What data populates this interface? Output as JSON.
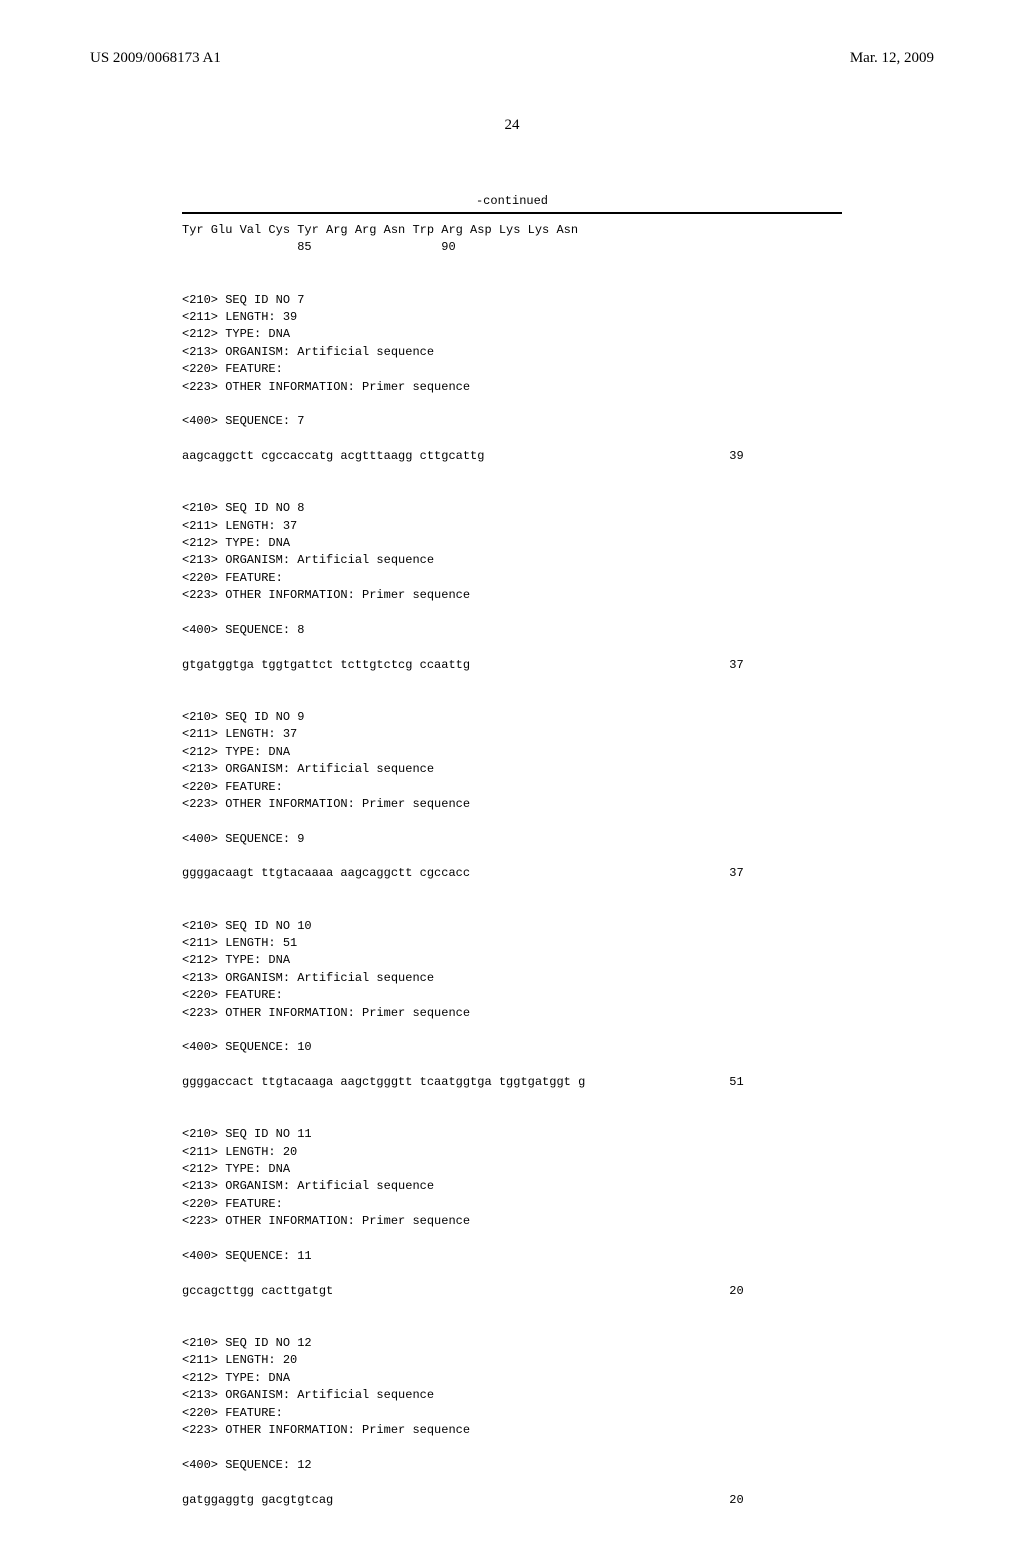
{
  "header": {
    "doc_number": "US 2009/0068173 A1",
    "doc_date": "Mar. 12, 2009"
  },
  "page_number": "24",
  "continued_label": "-continued",
  "peptide": {
    "line1": "Tyr Glu Val Cys Tyr Arg Arg Asn Trp Arg Asp Lys Lys Asn",
    "pos1": "85",
    "pos2": "90"
  },
  "sequences": [
    {
      "id": "7",
      "length": "39",
      "type": "DNA",
      "organism": "Artificial sequence",
      "feature": "",
      "other_info": "Primer sequence",
      "seq_text": "aagcaggctt cgccaccatg acgtttaagg cttgcattg",
      "seq_len": "39"
    },
    {
      "id": "8",
      "length": "37",
      "type": "DNA",
      "organism": "Artificial sequence",
      "feature": "",
      "other_info": "Primer sequence",
      "seq_text": "gtgatggtga tggtgattct tcttgtctcg ccaattg",
      "seq_len": "37"
    },
    {
      "id": "9",
      "length": "37",
      "type": "DNA",
      "organism": "Artificial sequence",
      "feature": "",
      "other_info": "Primer sequence",
      "seq_text": "ggggacaagt ttgtacaaaa aagcaggctt cgccacc",
      "seq_len": "37"
    },
    {
      "id": "10",
      "length": "51",
      "type": "DNA",
      "organism": "Artificial sequence",
      "feature": "",
      "other_info": "Primer sequence",
      "seq_text": "ggggaccact ttgtacaaga aagctgggtt tcaatggtga tggtgatggt g",
      "seq_len": "51"
    },
    {
      "id": "11",
      "length": "20",
      "type": "DNA",
      "organism": "Artificial sequence",
      "feature": "",
      "other_info": "Primer sequence",
      "seq_text": "gccagcttgg cacttgatgt",
      "seq_len": "20"
    },
    {
      "id": "12",
      "length": "20",
      "type": "DNA",
      "organism": "Artificial sequence",
      "feature": "",
      "other_info": "Primer sequence",
      "seq_text": "gatggaggtg gacgtgtcag",
      "seq_len": "20"
    }
  ],
  "labels": {
    "seq_id_no": "<210> SEQ ID NO ",
    "length": "<211> LENGTH: ",
    "type": "<212> TYPE: ",
    "organism": "<213> ORGANISM: ",
    "feature": "<220> FEATURE:",
    "other_info": "<223> OTHER INFORMATION: ",
    "sequence": "<400> SEQUENCE: "
  }
}
